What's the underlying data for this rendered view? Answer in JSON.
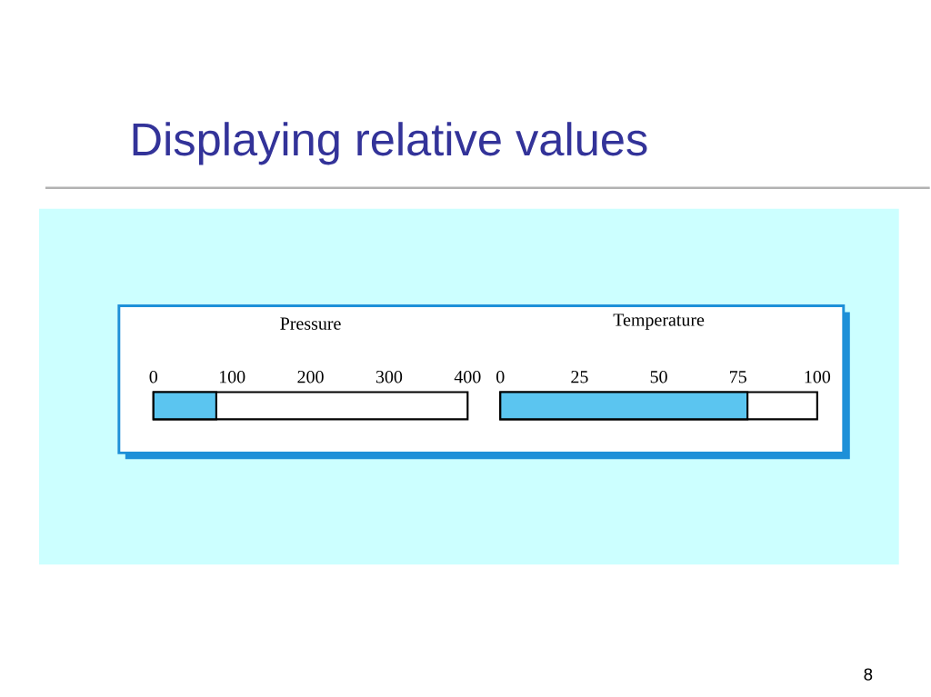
{
  "chart_data": [
    {
      "type": "bar",
      "orientation": "horizontal",
      "title": "Pressure",
      "annotations": [
        "Displaying relative values",
        "8"
      ],
      "categories": [
        null
      ],
      "values": [
        80
      ],
      "color": "#5bc5f0",
      "xlim": [
        0,
        400
      ],
      "xticks": [
        0,
        100,
        200,
        300,
        400
      ]
    },
    {
      "type": "bar",
      "orientation": "horizontal",
      "title": "Temperature",
      "categories": [
        null
      ],
      "values": [
        78
      ],
      "color": "#5bc5f0",
      "xlim": [
        0,
        100
      ],
      "xticks": [
        0,
        25,
        50,
        75,
        100
      ]
    }
  ]
}
